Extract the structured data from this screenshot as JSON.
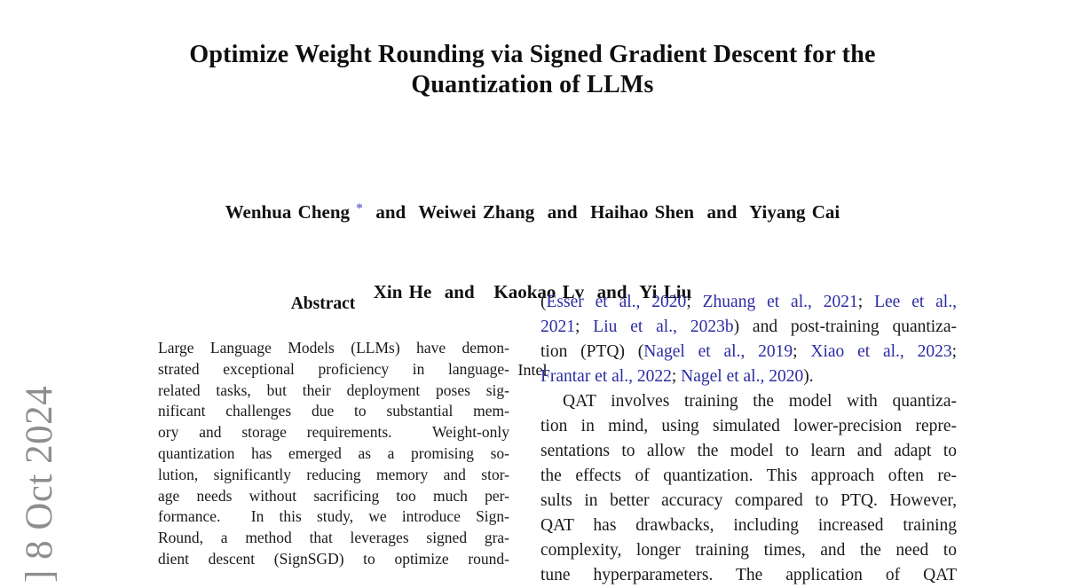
{
  "colors": {
    "citation_blue": "#2c2ca2",
    "asterisk_blue": "#6b6bd2",
    "watermark_gray": "#8e8e8e",
    "text_black": "#1a1a1a",
    "page_background": "#ffffff"
  },
  "watermark": {
    "text": "] 8 Oct 2024"
  },
  "title": {
    "lines": [
      "Optimize Weight Rounding via Signed Gradient Descent for the",
      "Quantization of LLMs"
    ]
  },
  "authors": {
    "line1": [
      {
        "text": "Wenhua Cheng "
      },
      {
        "text": "*",
        "mark": true
      },
      {
        "text": "  and  Weiwei Zhang  and  Haihao Shen  and  Yiyang Cai"
      }
    ],
    "line2": [
      {
        "text": "Xin He  and   Kaokao Lv  and  Yi Liu"
      }
    ],
    "affiliation": "Intel"
  },
  "abstract": {
    "heading": "Abstract",
    "lines": [
      "Large Language Models (LLMs) have demon-",
      "strated exceptional proficiency in language-",
      "related tasks, but their deployment poses sig-",
      "nificant challenges due to substantial mem-",
      "ory and storage requirements.  Weight-only",
      "quantization has emerged as a promising so-",
      "lution, significantly reducing memory and stor-",
      "age needs without sacrificing too much per-",
      "formance.  In this study, we introduce Sign-",
      "Round, a method that leverages signed gra-",
      "dient descent (SignSGD) to optimize round-"
    ]
  },
  "right_column": {
    "paragraph1": {
      "lines": [
        [
          {
            "text": "("
          },
          {
            "text": "Esser et al., 2020",
            "cite": true
          },
          {
            "text": "; "
          },
          {
            "text": "Zhuang et al., 2021",
            "cite": true
          },
          {
            "text": "; "
          },
          {
            "text": "Lee et al.,",
            "cite": true
          }
        ],
        [
          {
            "text": "2021",
            "cite": true
          },
          {
            "text": "; "
          },
          {
            "text": "Liu et al., 2023b",
            "cite": true
          },
          {
            "text": ") and post-training quantiza-"
          }
        ],
        [
          {
            "text": "tion (PTQ) ("
          },
          {
            "text": "Nagel et al., 2019",
            "cite": true
          },
          {
            "text": "; "
          },
          {
            "text": "Xiao et al., 2023",
            "cite": true
          },
          {
            "text": ";"
          }
        ],
        [
          {
            "text": "Frantar et al., 2022",
            "cite": true
          },
          {
            "text": "; "
          },
          {
            "text": "Nagel et al., 2020",
            "cite": true
          },
          {
            "text": ")."
          }
        ]
      ]
    },
    "paragraph2": {
      "lines": [
        "QAT involves training the model with quantiza-",
        "tion in mind, using simulated lower-precision repre-",
        "sentations to allow the model to learn and adapt to",
        "the effects of quantization. This approach often re-",
        "sults in better accuracy compared to PTQ. However,",
        "QAT has drawbacks, including increased training",
        "complexity, longer training times, and the need to",
        "tune hyperparameters. The application of QAT"
      ]
    }
  }
}
